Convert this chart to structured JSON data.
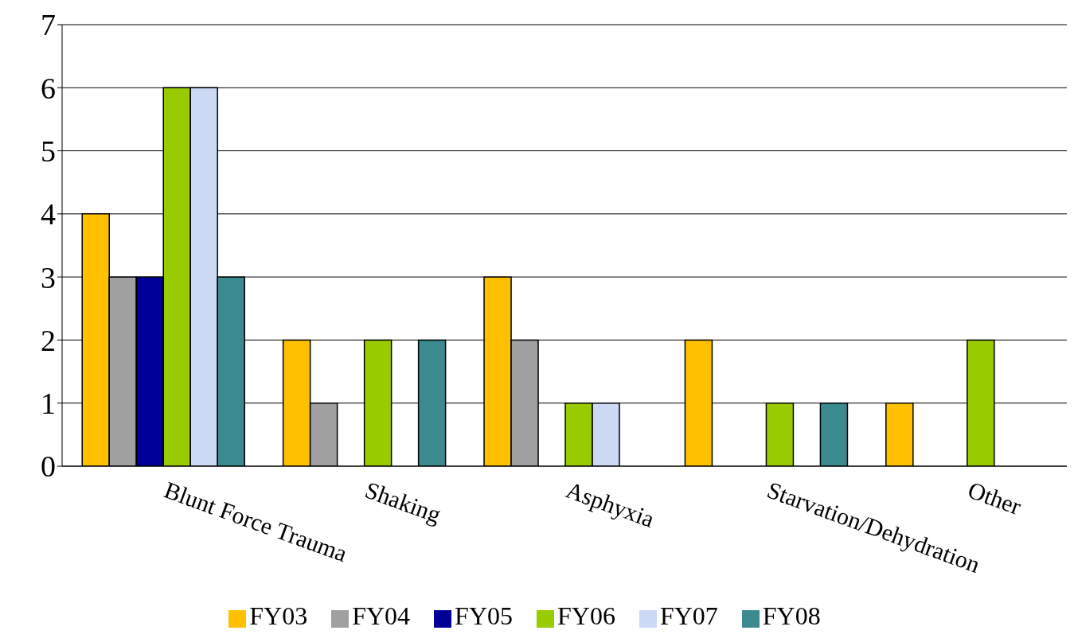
{
  "chart_data": {
    "type": "bar",
    "categories": [
      "Blunt Force Trauma",
      "Shaking",
      "Asphyxia",
      "Starvation/Dehydration",
      "Other"
    ],
    "series": [
      {
        "name": "FY03",
        "color": "#ffc000",
        "values": [
          4,
          2,
          3,
          2,
          1
        ]
      },
      {
        "name": "FY04",
        "color": "#a0a0a0",
        "values": [
          3,
          1,
          2,
          0,
          0
        ]
      },
      {
        "name": "FY05",
        "color": "#000099",
        "values": [
          3,
          0,
          0,
          0,
          0
        ]
      },
      {
        "name": "FY06",
        "color": "#99cc00",
        "values": [
          6,
          2,
          1,
          1,
          2
        ]
      },
      {
        "name": "FY07",
        "color": "#ccd9f5",
        "values": [
          6,
          0,
          1,
          0,
          0
        ]
      },
      {
        "name": "FY08",
        "color": "#3a8a8f",
        "values": [
          3,
          2,
          0,
          1,
          0
        ]
      }
    ],
    "ylim": [
      0,
      7
    ],
    "yticks": [
      0,
      1,
      2,
      3,
      4,
      5,
      6,
      7
    ],
    "grid": "y",
    "legend": "bottom"
  }
}
